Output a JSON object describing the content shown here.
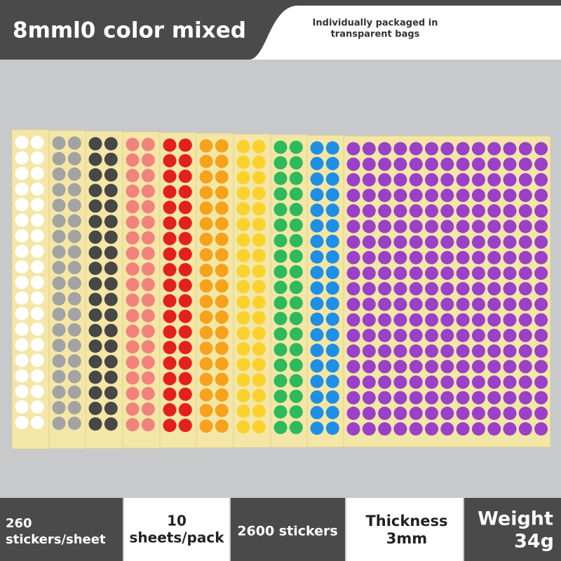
{
  "header": {
    "title": "8mml0 color mixed",
    "note_lines": [
      "Individually packaged in",
      "transparent bags"
    ]
  },
  "specs": [
    {
      "lines": [
        "260",
        "stickers/sheet"
      ]
    },
    {
      "lines": [
        "10",
        "sheets/pack"
      ]
    },
    {
      "lines": [
        "2600 stickers"
      ]
    },
    {
      "lines": [
        "Thickness",
        "3mm"
      ]
    },
    {
      "lines": [
        "Weight",
        "34g"
      ]
    }
  ]
}
